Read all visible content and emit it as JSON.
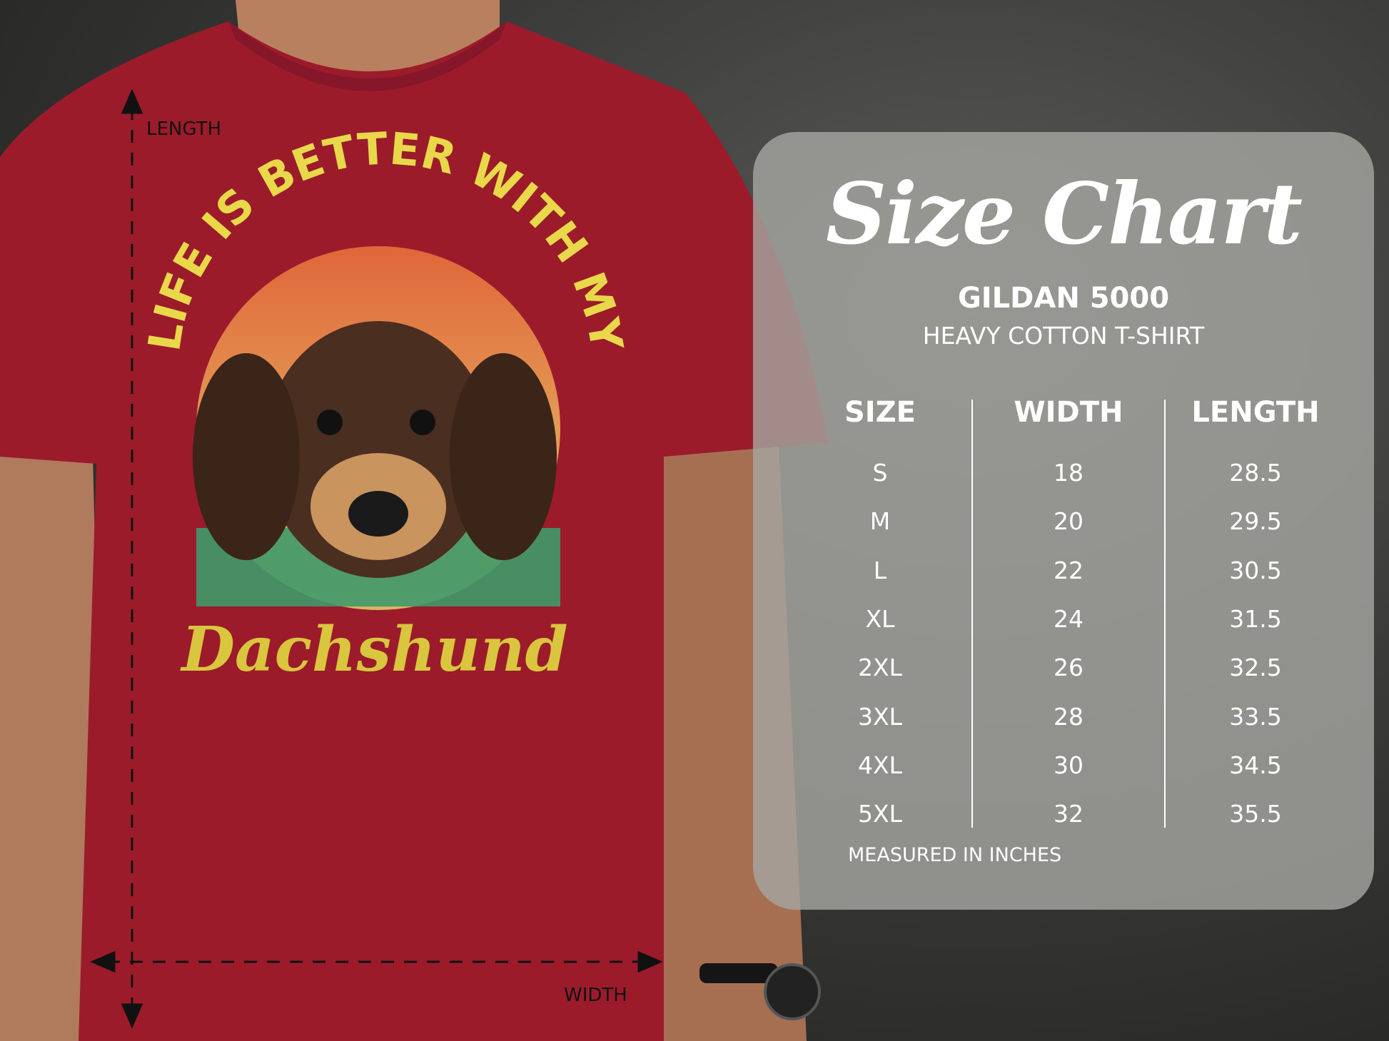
{
  "shirt": {
    "design_text_top": "LIFE IS BETTER WITH MY",
    "design_text_bottom": "Dachshund",
    "length_label": "LENGTH",
    "width_label": "WIDTH",
    "color": "#9b1b2b"
  },
  "size_chart": {
    "title": "Size Chart",
    "brand": "GILDAN 5000",
    "product": "HEAVY COTTON T-SHIRT",
    "columns": [
      "SIZE",
      "WIDTH",
      "LENGTH"
    ],
    "rows": [
      [
        "S",
        "18",
        "28.5"
      ],
      [
        "M",
        "20",
        "29.5"
      ],
      [
        "L",
        "22",
        "30.5"
      ],
      [
        "XL",
        "24",
        "31.5"
      ],
      [
        "2XL",
        "26",
        "32.5"
      ],
      [
        "3XL",
        "28",
        "33.5"
      ],
      [
        "4XL",
        "30",
        "34.5"
      ],
      [
        "5XL",
        "32",
        "35.5"
      ]
    ],
    "note": "MEASURED IN INCHES"
  }
}
